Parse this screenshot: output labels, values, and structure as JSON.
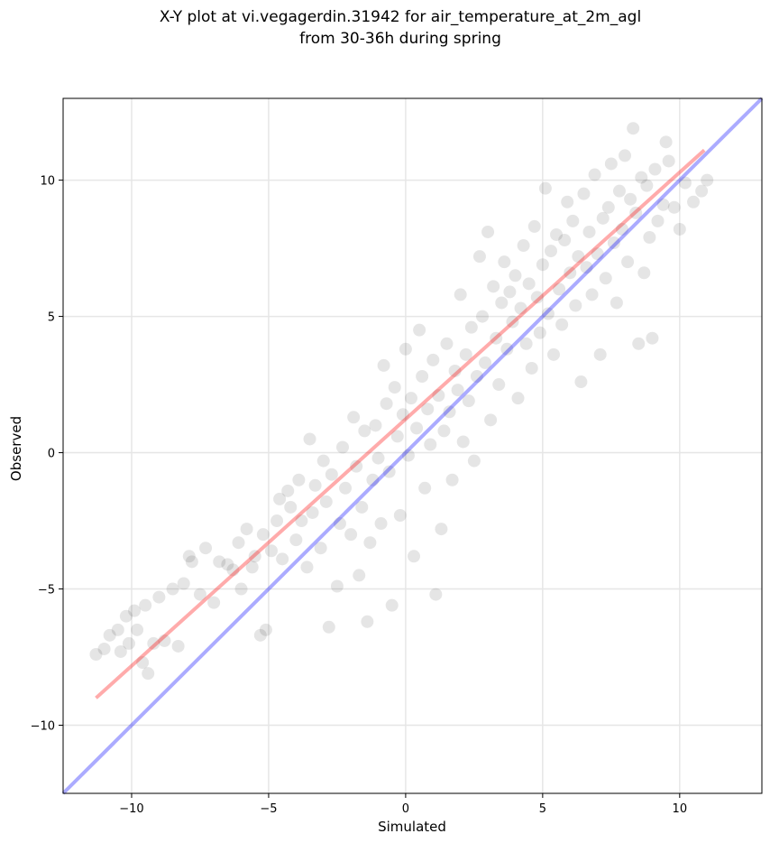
{
  "chart_data": {
    "type": "scatter",
    "title": "X-Y plot at vi.vegagerdin.31942 for air_temperature_at_2m_agl",
    "subtitle": "from 30-36h during spring",
    "xlabel": "Simulated",
    "ylabel": "Observed",
    "xlim": [
      -12.5,
      13.0
    ],
    "ylim": [
      -12.5,
      13.0
    ],
    "xticks": [
      -10,
      -5,
      0,
      5,
      10
    ],
    "yticks": [
      -10,
      -5,
      0,
      5,
      10
    ],
    "xtick_labels": [
      "−10",
      "−5",
      "0",
      "5",
      "10"
    ],
    "ytick_labels": [
      "−10",
      "−5",
      "0",
      "5",
      "10"
    ],
    "grid": true,
    "point_color": "#000000",
    "point_alpha": 0.1,
    "colors": {
      "identity_line": "#0000ff",
      "fit_line": "#ff0000"
    },
    "series": [
      {
        "type": "scatter",
        "points": [
          [
            -11.3,
            -7.4
          ],
          [
            -11.0,
            -7.2
          ],
          [
            -10.8,
            -6.7
          ],
          [
            -10.5,
            -6.5
          ],
          [
            -10.4,
            -7.3
          ],
          [
            -10.2,
            -6.0
          ],
          [
            -10.1,
            -7.0
          ],
          [
            -9.9,
            -5.8
          ],
          [
            -9.8,
            -6.5
          ],
          [
            -9.6,
            -7.7
          ],
          [
            -9.5,
            -5.6
          ],
          [
            -9.4,
            -8.1
          ],
          [
            -9.2,
            -7.0
          ],
          [
            -9.0,
            -5.3
          ],
          [
            -8.8,
            -6.9
          ],
          [
            -8.5,
            -5.0
          ],
          [
            -8.3,
            -7.1
          ],
          [
            -8.1,
            -4.8
          ],
          [
            -7.9,
            -3.8
          ],
          [
            -7.8,
            -4.0
          ],
          [
            -7.5,
            -5.2
          ],
          [
            -7.3,
            -3.5
          ],
          [
            -7.0,
            -5.5
          ],
          [
            -6.8,
            -4.0
          ],
          [
            -6.5,
            -4.1
          ],
          [
            -6.3,
            -4.3
          ],
          [
            -6.1,
            -3.3
          ],
          [
            -6.0,
            -5.0
          ],
          [
            -5.8,
            -2.8
          ],
          [
            -5.6,
            -4.2
          ],
          [
            -5.5,
            -3.8
          ],
          [
            -5.3,
            -6.7
          ],
          [
            -5.2,
            -3.0
          ],
          [
            -5.1,
            -6.5
          ],
          [
            -4.9,
            -3.6
          ],
          [
            -4.7,
            -2.5
          ],
          [
            -4.6,
            -1.7
          ],
          [
            -4.5,
            -3.9
          ],
          [
            -4.3,
            -1.4
          ],
          [
            -4.2,
            -2.0
          ],
          [
            -4.0,
            -3.2
          ],
          [
            -3.9,
            -1.0
          ],
          [
            -3.8,
            -2.5
          ],
          [
            -3.6,
            -4.2
          ],
          [
            -3.5,
            0.5
          ],
          [
            -3.4,
            -2.2
          ],
          [
            -3.3,
            -1.2
          ],
          [
            -3.1,
            -3.5
          ],
          [
            -3.0,
            -0.3
          ],
          [
            -2.9,
            -1.8
          ],
          [
            -2.8,
            -6.4
          ],
          [
            -2.7,
            -0.8
          ],
          [
            -2.5,
            -4.9
          ],
          [
            -2.4,
            -2.6
          ],
          [
            -2.3,
            0.2
          ],
          [
            -2.2,
            -1.3
          ],
          [
            -2.0,
            -3.0
          ],
          [
            -1.9,
            1.3
          ],
          [
            -1.8,
            -0.5
          ],
          [
            -1.7,
            -4.5
          ],
          [
            -1.6,
            -2.0
          ],
          [
            -1.5,
            0.8
          ],
          [
            -1.4,
            -6.2
          ],
          [
            -1.3,
            -3.3
          ],
          [
            -1.2,
            -1.0
          ],
          [
            -1.1,
            1.0
          ],
          [
            -1.0,
            -0.2
          ],
          [
            -0.9,
            -2.6
          ],
          [
            -0.8,
            3.2
          ],
          [
            -0.7,
            1.8
          ],
          [
            -0.6,
            -0.7
          ],
          [
            -0.5,
            -5.6
          ],
          [
            -0.4,
            2.4
          ],
          [
            -0.3,
            0.6
          ],
          [
            -0.2,
            -2.3
          ],
          [
            -0.1,
            1.4
          ],
          [
            0.0,
            3.8
          ],
          [
            0.1,
            -0.1
          ],
          [
            0.2,
            2.0
          ],
          [
            0.3,
            -3.8
          ],
          [
            0.4,
            0.9
          ],
          [
            0.5,
            4.5
          ],
          [
            0.6,
            2.8
          ],
          [
            0.7,
            -1.3
          ],
          [
            0.8,
            1.6
          ],
          [
            0.9,
            0.3
          ],
          [
            1.0,
            3.4
          ],
          [
            1.1,
            -5.2
          ],
          [
            1.2,
            2.1
          ],
          [
            1.3,
            -2.8
          ],
          [
            1.4,
            0.8
          ],
          [
            1.5,
            4.0
          ],
          [
            1.6,
            1.5
          ],
          [
            1.7,
            -1.0
          ],
          [
            1.8,
            3.0
          ],
          [
            1.9,
            2.3
          ],
          [
            2.0,
            5.8
          ],
          [
            2.1,
            0.4
          ],
          [
            2.2,
            3.6
          ],
          [
            2.3,
            1.9
          ],
          [
            2.4,
            4.6
          ],
          [
            2.5,
            -0.3
          ],
          [
            2.6,
            2.8
          ],
          [
            2.7,
            7.2
          ],
          [
            2.8,
            5.0
          ],
          [
            2.9,
            3.3
          ],
          [
            3.0,
            8.1
          ],
          [
            3.1,
            1.2
          ],
          [
            3.2,
            6.1
          ],
          [
            3.3,
            4.2
          ],
          [
            3.4,
            2.5
          ],
          [
            3.5,
            5.5
          ],
          [
            3.6,
            7.0
          ],
          [
            3.7,
            3.8
          ],
          [
            3.8,
            5.9
          ],
          [
            3.9,
            4.8
          ],
          [
            4.0,
            6.5
          ],
          [
            4.1,
            2.0
          ],
          [
            4.2,
            5.3
          ],
          [
            4.3,
            7.6
          ],
          [
            4.4,
            4.0
          ],
          [
            4.5,
            6.2
          ],
          [
            4.6,
            3.1
          ],
          [
            4.7,
            8.3
          ],
          [
            4.8,
            5.7
          ],
          [
            4.9,
            4.4
          ],
          [
            5.0,
            6.9
          ],
          [
            5.1,
            9.7
          ],
          [
            5.2,
            5.1
          ],
          [
            5.3,
            7.4
          ],
          [
            5.4,
            3.6
          ],
          [
            5.5,
            8.0
          ],
          [
            5.6,
            6.0
          ],
          [
            5.7,
            4.7
          ],
          [
            5.8,
            7.8
          ],
          [
            5.9,
            9.2
          ],
          [
            6.0,
            6.6
          ],
          [
            6.1,
            8.5
          ],
          [
            6.2,
            5.4
          ],
          [
            6.3,
            7.2
          ],
          [
            6.4,
            2.6
          ],
          [
            6.5,
            9.5
          ],
          [
            6.6,
            6.8
          ],
          [
            6.7,
            8.1
          ],
          [
            6.8,
            5.8
          ],
          [
            6.9,
            10.2
          ],
          [
            7.0,
            7.3
          ],
          [
            7.1,
            3.6
          ],
          [
            7.2,
            8.6
          ],
          [
            7.3,
            6.4
          ],
          [
            7.4,
            9.0
          ],
          [
            7.5,
            10.6
          ],
          [
            7.6,
            7.7
          ],
          [
            7.7,
            5.5
          ],
          [
            7.8,
            9.6
          ],
          [
            7.9,
            8.2
          ],
          [
            8.0,
            10.9
          ],
          [
            8.1,
            7.0
          ],
          [
            8.2,
            9.3
          ],
          [
            8.3,
            11.9
          ],
          [
            8.4,
            8.8
          ],
          [
            8.5,
            4.0
          ],
          [
            8.6,
            10.1
          ],
          [
            8.7,
            6.6
          ],
          [
            8.8,
            9.8
          ],
          [
            8.9,
            7.9
          ],
          [
            9.0,
            4.2
          ],
          [
            9.1,
            10.4
          ],
          [
            9.2,
            8.5
          ],
          [
            9.4,
            9.1
          ],
          [
            9.5,
            11.4
          ],
          [
            9.6,
            10.7
          ],
          [
            9.8,
            9.0
          ],
          [
            10.0,
            8.2
          ],
          [
            10.2,
            9.9
          ],
          [
            10.5,
            9.2
          ],
          [
            10.8,
            9.6
          ],
          [
            11.0,
            10.0
          ]
        ]
      },
      {
        "type": "line",
        "points": [
          [
            -12.5,
            -12.5
          ],
          [
            13.0,
            13.0
          ]
        ]
      },
      {
        "type": "line",
        "points": [
          [
            -11.3,
            -9.0
          ],
          [
            10.9,
            11.1
          ]
        ]
      }
    ]
  }
}
